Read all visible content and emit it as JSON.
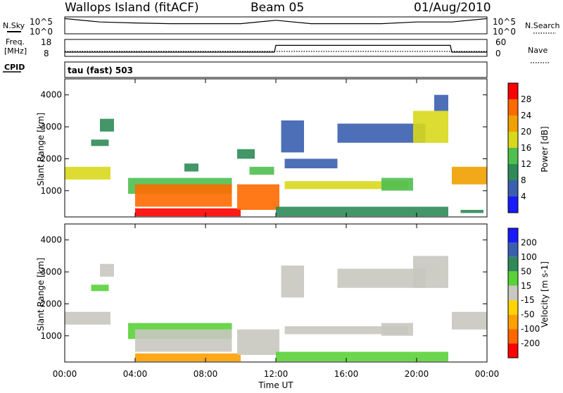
{
  "header": {
    "station": "Wallops Island (fitACF)",
    "beam": "Beam 05",
    "date": "01/Aug/2010"
  },
  "params": {
    "nsky_label": "N.Sky",
    "nsky_ticks": [
      "10^5",
      "10^0"
    ],
    "nsearch_label": "N.Search",
    "freq_label_1": "Freq.",
    "freq_label_2": "[MHz]",
    "freq_ticks": [
      "18",
      "8"
    ],
    "freq_right_ticks": [
      "60",
      "0"
    ],
    "nave_label": "Nave",
    "cpid_label": "CPID",
    "cpid_value": "tau (fast) 503"
  },
  "colors": {
    "power_scale": [
      "#1a1aff",
      "#3a5fb0",
      "#2e8b57",
      "#4fbf4f",
      "#d8d81c",
      "#f0a000",
      "#ff6a00",
      "#ff0000"
    ],
    "velocity_scale": [
      "#ff0000",
      "#ff6600",
      "#ffa000",
      "#ffd400",
      "#c8c8c0",
      "#5bd13a",
      "#2e8b57",
      "#3a5fb0",
      "#1a1aff"
    ]
  },
  "chart_data": [
    {
      "type": "line",
      "title": "N.Sky",
      "x": [
        "00:00",
        "02:00",
        "04:00",
        "06:00",
        "08:00",
        "10:00",
        "12:00",
        "14:00",
        "16:00",
        "18:00",
        "20:00",
        "22:00",
        "24:00"
      ],
      "series": [
        {
          "name": "N.Sky",
          "values": [
            4.5,
            3.5,
            3.2,
            3.0,
            3.0,
            3.0,
            4.0,
            3.0,
            3.0,
            3.0,
            3.5,
            3.5,
            4.5
          ]
        }
      ],
      "ylim": [
        0,
        5
      ],
      "scale": "log"
    },
    {
      "type": "line",
      "title": "Freq.",
      "x": [
        "00:00",
        "11:55",
        "12:00",
        "21:55",
        "22:00",
        "24:00"
      ],
      "series": [
        {
          "name": "Freq.",
          "values": [
            10.5,
            10.5,
            14.5,
            14.5,
            10.5,
            10.5
          ]
        }
      ],
      "ylim": [
        8,
        18
      ]
    },
    {
      "type": "heatmap",
      "title": "Power",
      "xlabel": "Time UT",
      "ylabel": "Slant Range [km]",
      "x_ticks": [
        "00:00",
        "04:00",
        "08:00",
        "12:00",
        "16:00",
        "20:00",
        "00:00"
      ],
      "y_ticks": [
        1000,
        2000,
        3000,
        4000
      ],
      "xlim": [
        0,
        24
      ],
      "ylim": [
        180,
        4500
      ],
      "colorbar": {
        "label": "Power [dB]",
        "ticks": [
          4,
          8,
          12,
          16,
          20,
          24,
          28
        ]
      },
      "regions": [
        {
          "x": [
            0,
            2.6
          ],
          "y": [
            1350,
            1750
          ],
          "value": 18
        },
        {
          "x": [
            1.5,
            2.5
          ],
          "y": [
            2400,
            2600
          ],
          "value": 8
        },
        {
          "x": [
            2.0,
            2.8
          ],
          "y": [
            2850,
            3250
          ],
          "value": 8
        },
        {
          "x": [
            3.6,
            9.5
          ],
          "y": [
            900,
            1400
          ],
          "value": 14
        },
        {
          "x": [
            4.0,
            9.5
          ],
          "y": [
            500,
            1200
          ],
          "value": 26
        },
        {
          "x": [
            4.0,
            10.0
          ],
          "y": [
            200,
            450
          ],
          "value": 28
        },
        {
          "x": [
            6.8,
            7.6
          ],
          "y": [
            1600,
            1850
          ],
          "value": 10
        },
        {
          "x": [
            9.8,
            12.2
          ],
          "y": [
            400,
            1200
          ],
          "value": 24
        },
        {
          "x": [
            9.8,
            10.8
          ],
          "y": [
            2000,
            2300
          ],
          "value": 10
        },
        {
          "x": [
            10.5,
            11.9
          ],
          "y": [
            1500,
            1750
          ],
          "value": 14
        },
        {
          "x": [
            12.0,
            21.8
          ],
          "y": [
            200,
            500
          ],
          "value": 10
        },
        {
          "x": [
            12.3,
            13.6
          ],
          "y": [
            2200,
            3200
          ],
          "value": 6
        },
        {
          "x": [
            12.5,
            15.5
          ],
          "y": [
            1700,
            2000
          ],
          "value": 6
        },
        {
          "x": [
            12.5,
            19.5
          ],
          "y": [
            1050,
            1300
          ],
          "value": 16
        },
        {
          "x": [
            15.5,
            20.5
          ],
          "y": [
            2500,
            3100
          ],
          "value": 6
        },
        {
          "x": [
            18.0,
            19.8
          ],
          "y": [
            1000,
            1400
          ],
          "value": 14
        },
        {
          "x": [
            19.8,
            21.8
          ],
          "y": [
            2500,
            3500
          ],
          "value": 16
        },
        {
          "x": [
            21.0,
            21.8
          ],
          "y": [
            3500,
            4000
          ],
          "value": 6
        },
        {
          "x": [
            22.0,
            24.0
          ],
          "y": [
            1200,
            1750
          ],
          "value": 20
        },
        {
          "x": [
            22.5,
            23.8
          ],
          "y": [
            300,
            400
          ],
          "value": 8
        }
      ]
    },
    {
      "type": "heatmap",
      "title": "Velocity",
      "xlabel": "Time UT",
      "ylabel": "Slant Range [km]",
      "x_ticks": [
        "00:00",
        "04:00",
        "08:00",
        "12:00",
        "16:00",
        "20:00",
        "00:00"
      ],
      "y_ticks": [
        1000,
        2000,
        3000,
        4000
      ],
      "xlim": [
        0,
        24
      ],
      "ylim": [
        180,
        4500
      ],
      "colorbar": {
        "label": "Velocity [m s-1]",
        "ticks": [
          200,
          100,
          50,
          15,
          -15,
          -50,
          -100,
          -200
        ]
      },
      "regions": [
        {
          "x": [
            0,
            2.6
          ],
          "y": [
            1350,
            1750
          ],
          "value": 0
        },
        {
          "x": [
            1.5,
            2.5
          ],
          "y": [
            2400,
            2600
          ],
          "value": 60
        },
        {
          "x": [
            2.0,
            2.8
          ],
          "y": [
            2850,
            3250
          ],
          "value": 0
        },
        {
          "x": [
            3.6,
            9.5
          ],
          "y": [
            900,
            1400
          ],
          "value": 70
        },
        {
          "x": [
            4.0,
            9.5
          ],
          "y": [
            500,
            1200
          ],
          "value": 0
        },
        {
          "x": [
            4.0,
            10.0
          ],
          "y": [
            200,
            450
          ],
          "value": -60
        },
        {
          "x": [
            9.8,
            12.2
          ],
          "y": [
            400,
            1200
          ],
          "value": 0
        },
        {
          "x": [
            12.0,
            21.8
          ],
          "y": [
            200,
            500
          ],
          "value": 40
        },
        {
          "x": [
            12.3,
            13.6
          ],
          "y": [
            2200,
            3200
          ],
          "value": 0
        },
        {
          "x": [
            12.5,
            19.5
          ],
          "y": [
            1050,
            1300
          ],
          "value": 0
        },
        {
          "x": [
            15.5,
            20.5
          ],
          "y": [
            2500,
            3100
          ],
          "value": 0
        },
        {
          "x": [
            18.0,
            19.8
          ],
          "y": [
            1000,
            1400
          ],
          "value": 0
        },
        {
          "x": [
            19.8,
            21.8
          ],
          "y": [
            2500,
            3500
          ],
          "value": 0
        },
        {
          "x": [
            22.0,
            24.0
          ],
          "y": [
            1200,
            1750
          ],
          "value": 0
        }
      ]
    }
  ]
}
